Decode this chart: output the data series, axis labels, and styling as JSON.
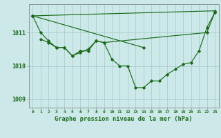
{
  "title": "Graphe pression niveau de la mer (hPa)",
  "background_color": "#cce8e8",
  "plot_bg_color": "#cce8e8",
  "line_color": "#1a6b1a",
  "grid_color": "#aacece",
  "ylim": [
    1008.75,
    1011.85
  ],
  "yticks": [
    1009,
    1010,
    1011
  ],
  "xlim": [
    -0.5,
    23.5
  ],
  "xticks": [
    0,
    1,
    2,
    3,
    4,
    5,
    6,
    7,
    8,
    9,
    10,
    11,
    12,
    13,
    14,
    15,
    16,
    17,
    18,
    19,
    20,
    21,
    22,
    23
  ],
  "series": [
    {
      "x": [
        0,
        1,
        2,
        3,
        4,
        5,
        6,
        7,
        8,
        9,
        10,
        11,
        12,
        13,
        14,
        15,
        16,
        17,
        18,
        19,
        20,
        21,
        22,
        23
      ],
      "y": [
        1011.5,
        1011.0,
        1010.75,
        1010.55,
        1010.55,
        1010.3,
        1010.45,
        1010.45,
        1010.75,
        1010.7,
        1010.2,
        1010.0,
        1010.0,
        1009.35,
        1009.35,
        1009.55,
        1009.55,
        1009.75,
        1009.9,
        1010.05,
        1010.1,
        1010.45,
        1011.15,
        1011.6
      ]
    },
    {
      "x": [
        0,
        23
      ],
      "y": [
        1011.5,
        1011.65
      ]
    },
    {
      "x": [
        0,
        14
      ],
      "y": [
        1011.5,
        1010.55
      ]
    },
    {
      "x": [
        1,
        2,
        3,
        4,
        5,
        6,
        7,
        8,
        9,
        22,
        23
      ],
      "y": [
        1010.8,
        1010.7,
        1010.55,
        1010.55,
        1010.3,
        1010.4,
        1010.5,
        1010.75,
        1010.7,
        1011.0,
        1011.6
      ]
    }
  ]
}
